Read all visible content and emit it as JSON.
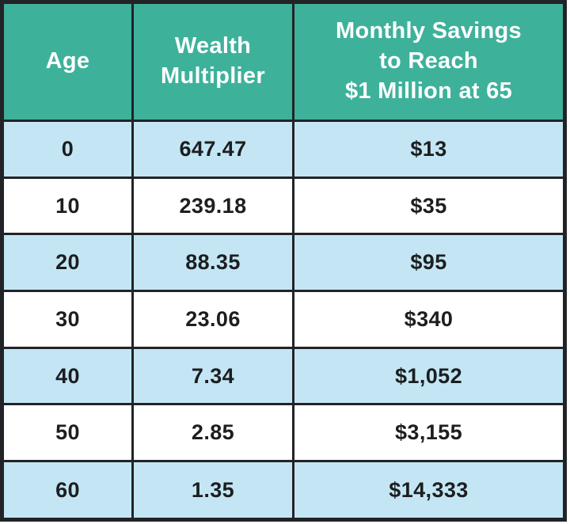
{
  "chart_data": {
    "type": "table",
    "columns": [
      "Age",
      "Wealth\nMultiplier",
      "Monthly Savings\nto Reach\n$1 Million at 65"
    ],
    "rows": [
      [
        "0",
        "647.47",
        "$13"
      ],
      [
        "10",
        "239.18",
        "$35"
      ],
      [
        "20",
        "88.35",
        "$95"
      ],
      [
        "30",
        "23.06",
        "$340"
      ],
      [
        "40",
        "7.34",
        "$1,052"
      ],
      [
        "50",
        "2.85",
        "$3,155"
      ],
      [
        "60",
        "1.35",
        "$14,333"
      ]
    ],
    "layout": {
      "striped": true,
      "stripe_pattern": "odd-rows-blue"
    }
  },
  "theme": {
    "header_bg": "#3EB19B",
    "header_text": "#FDFEFE",
    "row_alt_bg": "#C4E6F4",
    "row_bg": "#FFFFFF",
    "border_color": "#222326",
    "text_color": "#1C1E20"
  }
}
